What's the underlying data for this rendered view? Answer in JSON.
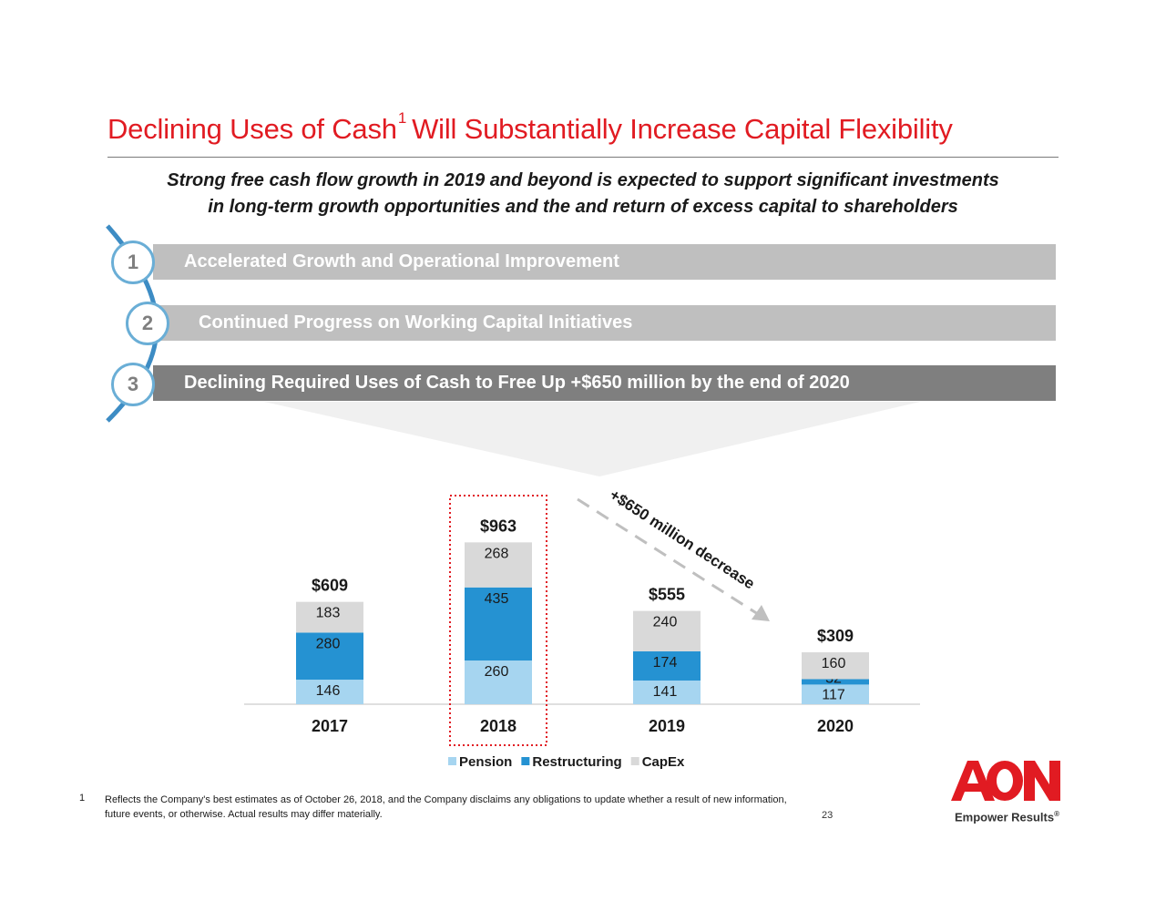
{
  "header": {
    "title_main": "Declining Uses of Cash",
    "title_sup": "1",
    "title_rest": "Will Substantially Increase Capital Flexibility",
    "subtitle_line1": "Strong free cash flow growth in 2019 and beyond is expected to support significant investments",
    "subtitle_line2": "in long-term growth opportunities and the and return of excess capital to shareholders"
  },
  "steps": [
    {
      "number": "1",
      "label": "Accelerated Growth and Operational Improvement"
    },
    {
      "number": "2",
      "label": "Continued Progress on Working Capital Initiatives"
    },
    {
      "number": "3",
      "label": "Declining Required Uses of Cash to Free Up +$650 million by the end of 2020"
    }
  ],
  "chart_data": {
    "type": "bar",
    "stacked": true,
    "categories": [
      "2017",
      "2018",
      "2019",
      "2020"
    ],
    "series": [
      {
        "name": "Pension",
        "color": "#a6d5f0",
        "values": [
          146,
          260,
          141,
          117
        ]
      },
      {
        "name": "Restructuring",
        "color": "#2592d2",
        "values": [
          280,
          435,
          174,
          32
        ]
      },
      {
        "name": "CapEx",
        "color": "#d9d9d9",
        "values": [
          183,
          268,
          240,
          160
        ]
      }
    ],
    "totals": [
      "$609",
      "$963",
      "$555",
      "$309"
    ],
    "highlighted_category": "2018",
    "annotation": "+$650 million decrease",
    "legend_position": "bottom"
  },
  "footnote": {
    "number": "1",
    "line1": "Reflects the Company's best estimates as of October 26, 2018, and the Company disclaims any obligations to update whether a result of new information,",
    "line2": "future events, or otherwise. Actual results may differ materially."
  },
  "page_number": "23",
  "logo": {
    "brand": "AON",
    "tagline": "Empower Results",
    "mark": "®",
    "color": "#e11b22"
  }
}
